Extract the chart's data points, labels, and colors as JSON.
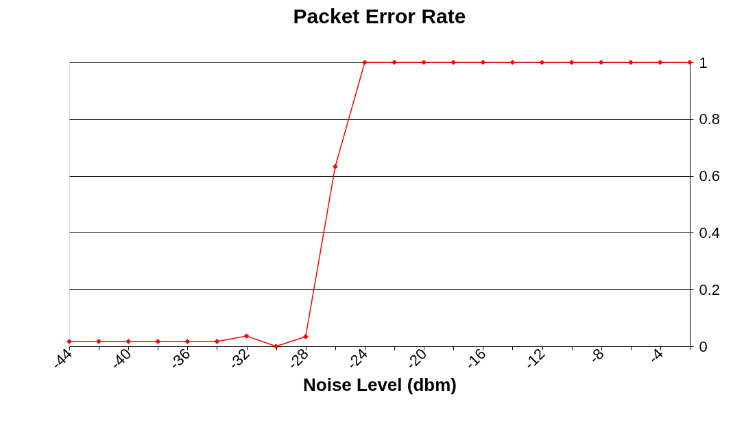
{
  "chart_data": {
    "type": "line",
    "title": "Packet Error Rate",
    "xlabel": "Noise Level (dbm)",
    "x": [
      -44,
      -42,
      -40,
      -38,
      -36,
      -34,
      -32,
      -30,
      -28,
      -26,
      -24,
      -22,
      -20,
      -18,
      -16,
      -14,
      -12,
      -10,
      -8,
      -6,
      -4,
      -2
    ],
    "series": [
      {
        "color": "#ff0000",
        "values": [
          0.017,
          0.017,
          0.017,
          0.017,
          0.017,
          0.017,
          0.036,
          0,
          0.034,
          0.633,
          1,
          1,
          1,
          1,
          1,
          1,
          1,
          1,
          1,
          1,
          1,
          1
        ]
      }
    ],
    "xlim": [
      -44,
      -2
    ],
    "xticks": [
      -44,
      {
        "value": -42,
        "label": null
      },
      -40,
      {
        "value": -38,
        "label": null
      },
      -36,
      {
        "value": -34,
        "label": null
      },
      -32,
      {
        "value": -30,
        "label": null
      },
      -28,
      {
        "value": -26,
        "label": null
      },
      -24,
      {
        "value": -22,
        "label": null
      },
      -20,
      {
        "value": -18,
        "label": null
      },
      -16,
      {
        "value": -14,
        "label": null
      },
      -12,
      {
        "value": -10,
        "label": null
      },
      -8,
      {
        "value": -6,
        "label": null
      },
      -4,
      {
        "value": -2,
        "label": null
      }
    ],
    "ylim": [
      0,
      1
    ],
    "yticks": [
      0,
      0.2,
      0.4,
      0.6,
      0.8,
      1
    ],
    "grid": "y",
    "marker": "diamond",
    "line_style": "solid",
    "legend": false
  }
}
